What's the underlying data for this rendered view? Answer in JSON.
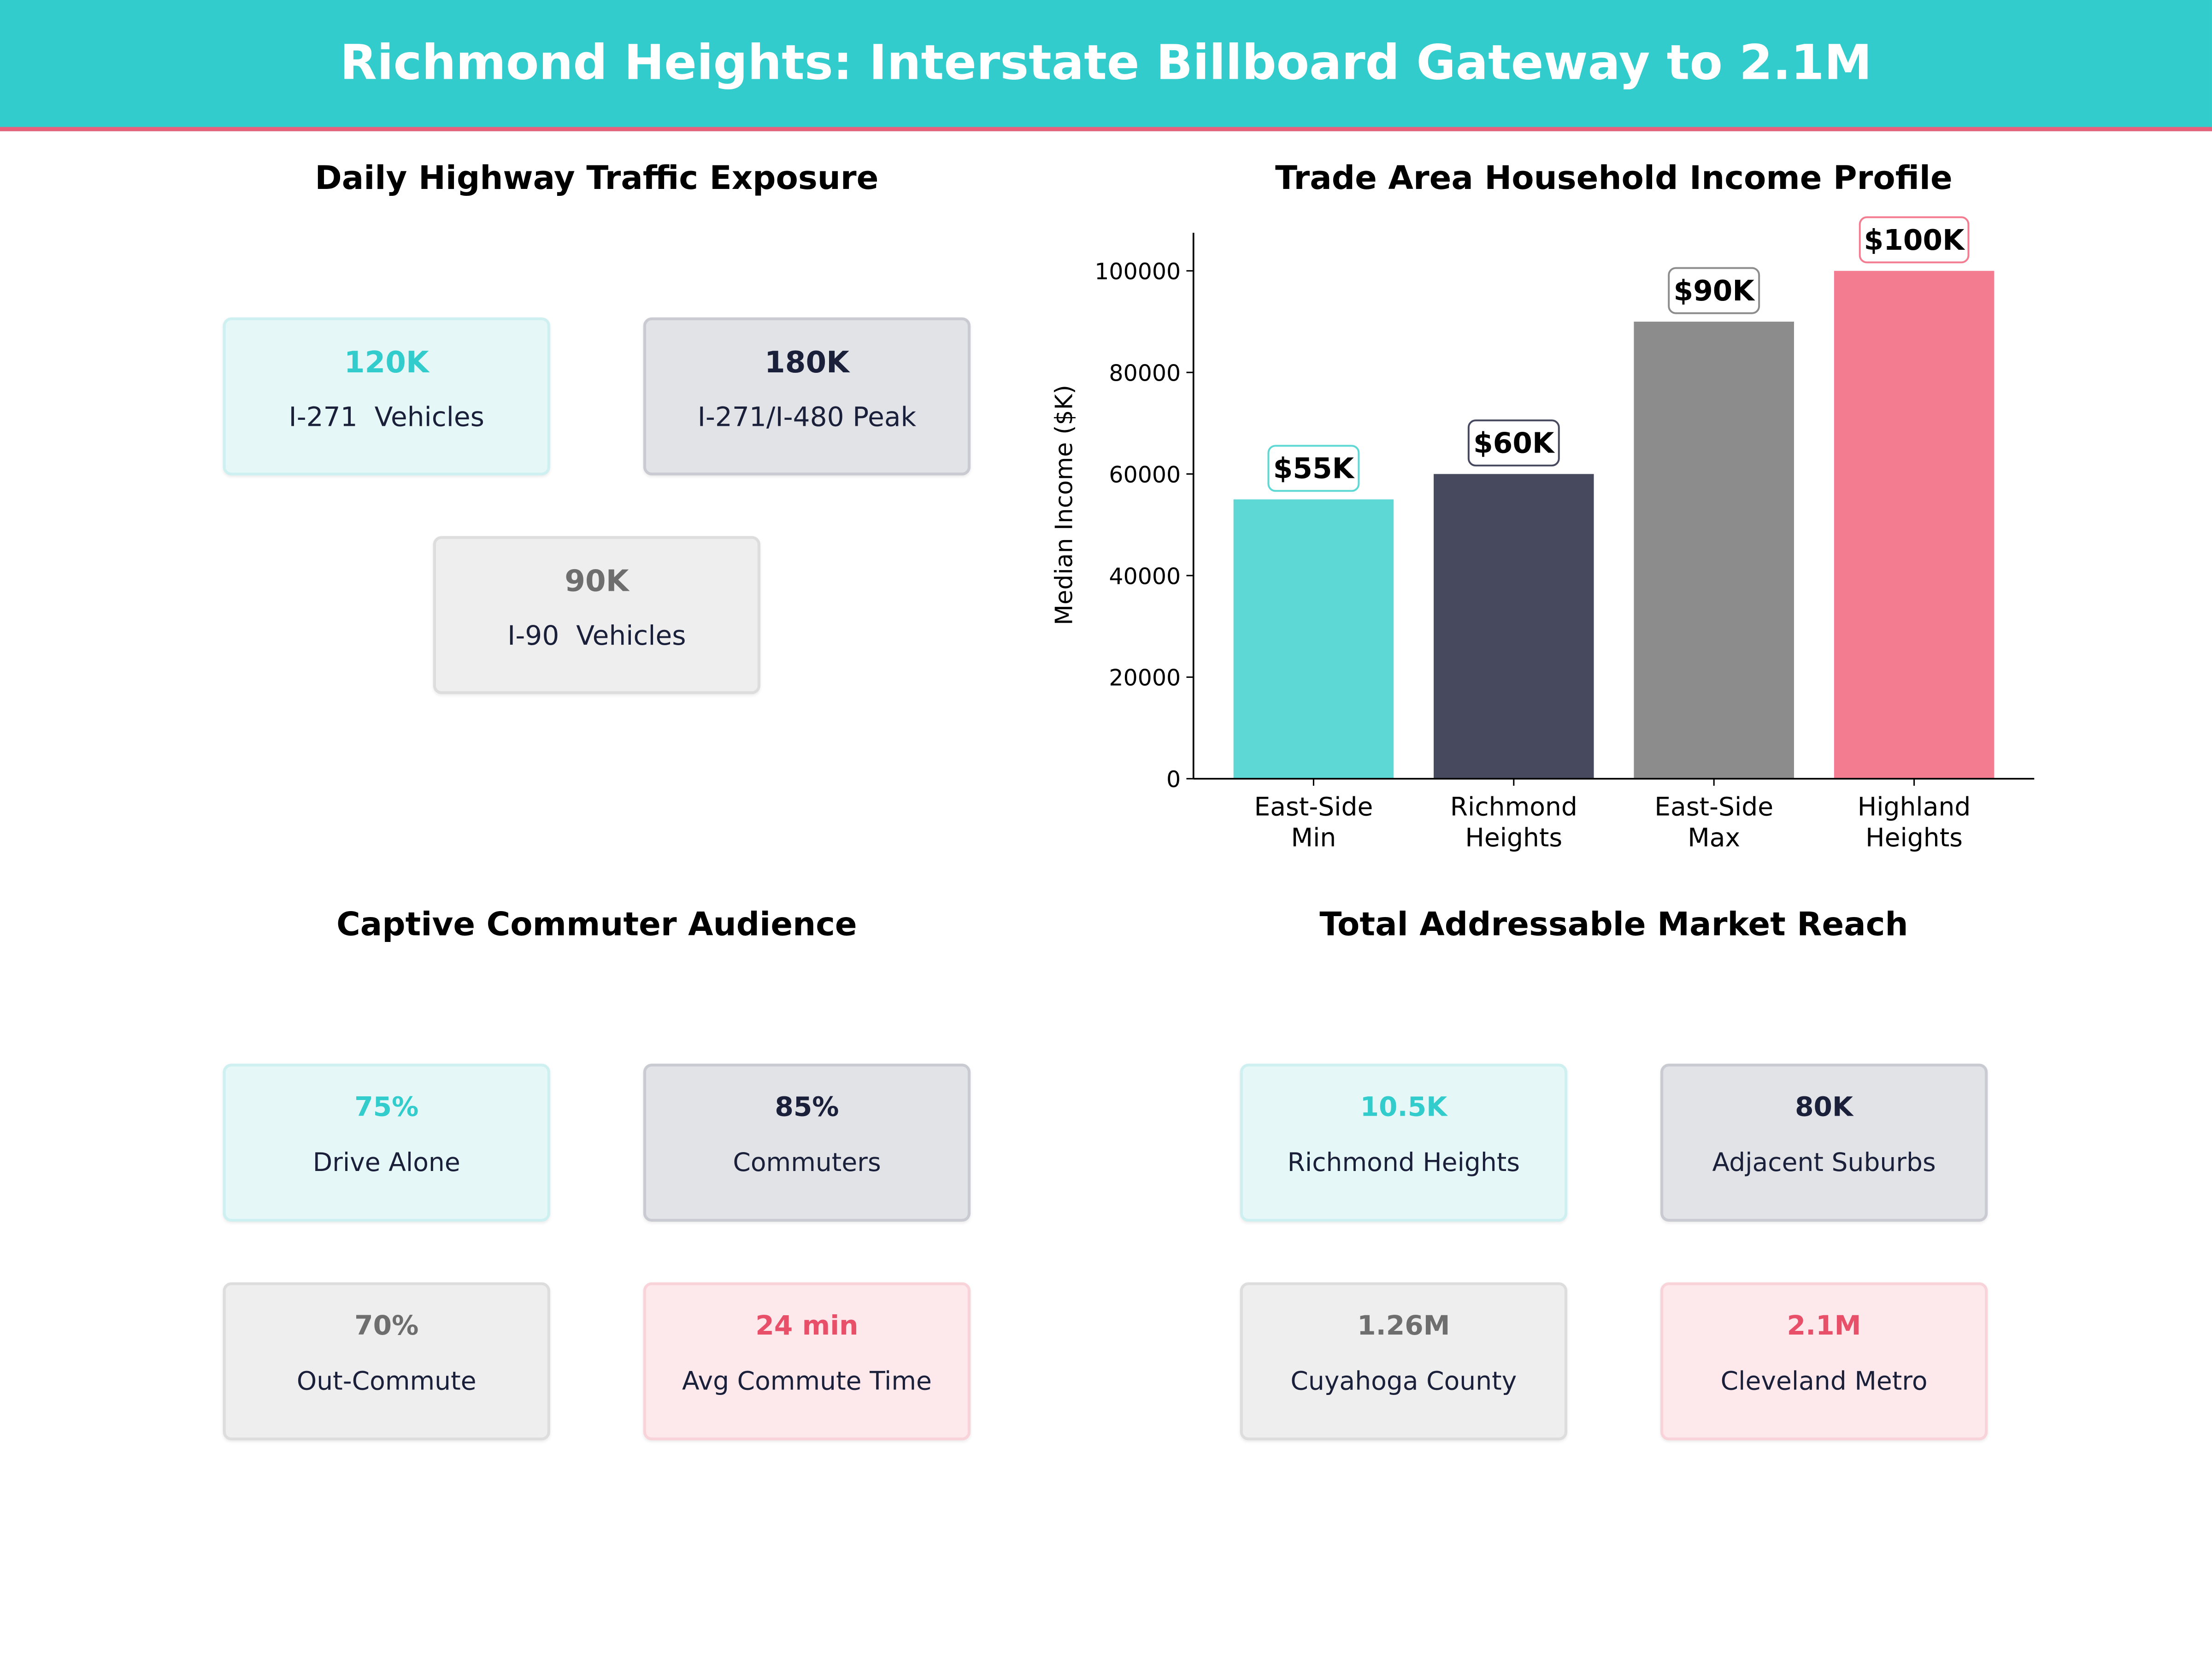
{
  "header": {
    "title": "Richmond Heights: Interstate Billboard Gateway to 2.1M"
  },
  "traffic": {
    "title": "Daily Highway Traffic Exposure",
    "cards": [
      {
        "value": "120K",
        "label": "I-271  Vehicles",
        "style": "teal"
      },
      {
        "value": "180K",
        "label": "I-271/I-480 Peak",
        "style": "dark"
      },
      {
        "value": "90K",
        "label": "I-90  Vehicles",
        "style": "gray"
      }
    ]
  },
  "commuter": {
    "title": "Captive Commuter Audience",
    "cards": [
      {
        "value": "75%",
        "label": "Drive Alone",
        "style": "teal"
      },
      {
        "value": "85%",
        "label": "Commuters",
        "style": "dark"
      },
      {
        "value": "70%",
        "label": "Out-Commute",
        "style": "gray"
      },
      {
        "value": "24 min",
        "label": "Avg Commute Time",
        "style": "pink"
      }
    ]
  },
  "market": {
    "title": "Total Addressable Market Reach",
    "cards": [
      {
        "value": "10.5K",
        "label": "Richmond Heights",
        "style": "teal"
      },
      {
        "value": "80K",
        "label": "Adjacent Suburbs",
        "style": "dark"
      },
      {
        "value": "1.26M",
        "label": "Cuyahoga County",
        "style": "gray"
      },
      {
        "value": "2.1M",
        "label": "Cleveland Metro",
        "style": "pink"
      }
    ]
  },
  "chart_data": {
    "type": "bar",
    "title": "Trade Area Household Income Profile",
    "xlabel": "",
    "ylabel": "Median Income ($K)",
    "categories": [
      "East-Side\nMin",
      "Richmond\nHeights",
      "East-Side\nMax",
      "Highland\nHeights"
    ],
    "values": [
      55000,
      60000,
      90000,
      100000
    ],
    "data_labels": [
      "$55K",
      "$60K",
      "$90K",
      "$100K"
    ],
    "colors": [
      "#5ED8D4",
      "#474A5F",
      "#8C8C8C",
      "#F47C90"
    ],
    "label_border_colors": [
      "#5ED8D4",
      "#474A5F",
      "#8C8C8C",
      "#F47C90"
    ],
    "yticks": [
      0,
      20000,
      40000,
      60000,
      80000,
      100000
    ],
    "ylim": [
      0,
      107500
    ],
    "grid": false
  }
}
